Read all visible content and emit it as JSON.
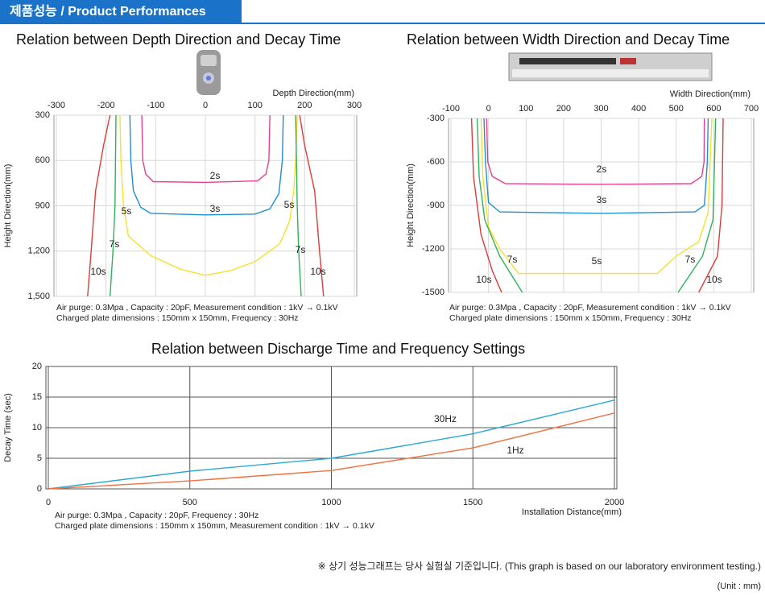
{
  "header": {
    "title": "제품성능 / Product Performances"
  },
  "chart_data": [
    {
      "type": "contour",
      "title": "Relation between Depth Direction and Decay Time",
      "x_label": "Depth Direction(mm)",
      "y_label": "Height Direction(mm)",
      "xlim": [
        -300,
        300
      ],
      "xticks": [
        -300,
        -200,
        -100,
        0,
        100,
        200,
        300
      ],
      "ylim": [
        300,
        1500
      ],
      "y_reversed": true,
      "yticks": [
        300,
        600,
        900,
        {
          "value": 1200,
          "label": "1,200"
        },
        {
          "value": 1500,
          "label": "1,500"
        }
      ],
      "grid": true,
      "series": [
        {
          "name": "2s",
          "color": "#e8408f",
          "x": [
            -128,
            -126,
            -120,
            -105,
            0,
            105,
            122,
            128,
            130
          ],
          "values": [
            300,
            600,
            690,
            740,
            745,
            735,
            690,
            600,
            300
          ]
        },
        {
          "name": "3s",
          "color": "#1f8fd0",
          "x": [
            -152,
            -150,
            -145,
            -130,
            -110,
            0,
            100,
            130,
            148,
            155,
            157
          ],
          "values": [
            300,
            600,
            800,
            910,
            950,
            960,
            955,
            920,
            820,
            600,
            300
          ]
        },
        {
          "name": "5s",
          "color": "#f5e030",
          "x": [
            -172,
            -170,
            -165,
            -155,
            -110,
            -50,
            0,
            50,
            100,
            150,
            170,
            178,
            182,
            185
          ],
          "values": [
            300,
            600,
            900,
            1100,
            1230,
            1320,
            1360,
            1330,
            1270,
            1150,
            1000,
            800,
            600,
            300
          ]
        },
        {
          "name": "7s",
          "color": "#2db35a",
          "x": [
            -180,
            -182,
            -186,
            -192,
            null,
            193,
            188,
            185,
            182
          ],
          "values": [
            300,
            900,
            1200,
            1500,
            null,
            1500,
            1200,
            900,
            300
          ]
        },
        {
          "name": "10s",
          "color": "#e03a3a",
          "x": [
            -192,
            -205,
            -221,
            -230,
            -237,
            null,
            238,
            230,
            220,
            200,
            190
          ],
          "values": [
            300,
            500,
            800,
            1200,
            1500,
            null,
            1500,
            1200,
            800,
            500,
            300
          ]
        }
      ],
      "notes": [
        "Air purge: 0.3Mpa , Capacity : 20pF,  Measurement condition : 1kV → 0.1kV",
        "Charged plate dimensions : 150mm x 150mm, Frequency : 30Hz"
      ]
    },
    {
      "type": "contour",
      "title": "Relation between Width Direction and Decay Time",
      "x_label": "Width Direction(mm)",
      "y_label": "Height Direction(mm)",
      "xlim": [
        -100,
        700
      ],
      "xticks": [
        -100,
        0,
        100,
        200,
        300,
        400,
        500,
        600,
        700
      ],
      "ylim": [
        -1500,
        -300
      ],
      "yticks": [
        -300,
        -600,
        -900,
        -1200,
        -1500
      ],
      "grid": true,
      "series": [
        {
          "name": "2s",
          "color": "#e8408f",
          "x": [
            -5,
            -2,
            10,
            45,
            300,
            540,
            568,
            574,
            575
          ],
          "values": [
            -300,
            -600,
            -700,
            -750,
            -755,
            -750,
            -700,
            -600,
            -300
          ]
        },
        {
          "name": "3s",
          "color": "#1f8fd0",
          "x": [
            -12,
            -8,
            0,
            30,
            300,
            550,
            575,
            583,
            585
          ],
          "values": [
            -300,
            -600,
            -880,
            -945,
            -955,
            -945,
            -900,
            -600,
            -300
          ]
        },
        {
          "name": "5s",
          "color": "#f5e030",
          "x": [
            -20,
            -15,
            0,
            30,
            80,
            450,
            500,
            560,
            585,
            595
          ],
          "values": [
            -300,
            -700,
            -1050,
            -1200,
            -1370,
            -1370,
            -1250,
            -1150,
            -950,
            -300
          ]
        },
        {
          "name": "7s",
          "color": "#2db35a",
          "x": [
            -30,
            -25,
            -10,
            30,
            90,
            null,
            505,
            570,
            598,
            605
          ],
          "values": [
            -300,
            -700,
            -1000,
            -1250,
            -1500,
            null,
            -1500,
            -1250,
            -1000,
            -300
          ]
        },
        {
          "name": "10s",
          "color": "#e03a3a",
          "x": [
            -45,
            -40,
            -20,
            10,
            35,
            null,
            560,
            610,
            622,
            625
          ],
          "values": [
            -300,
            -700,
            -1100,
            -1350,
            -1500,
            null,
            -1500,
            -1250,
            -900,
            -300
          ]
        }
      ],
      "notes": [
        "Air purge: 0.3Mpa , Capacity : 20pF,  Measurement condition : 1kV → 0.1kV",
        "Charged plate dimensions : 150mm x 150mm, Frequency : 30Hz"
      ]
    },
    {
      "type": "line",
      "title": "Relation between Discharge Time and Frequency Settings",
      "x_label": "Installation Distance(mm)",
      "y_label": "Decay Time (sec)",
      "x": [
        0,
        500,
        1000,
        1500,
        2000
      ],
      "xlim": [
        0,
        2000
      ],
      "xticks": [
        0,
        500,
        1000,
        1500,
        2000
      ],
      "ylim": [
        0,
        20
      ],
      "yticks": [
        0,
        5,
        10,
        15,
        20
      ],
      "grid": true,
      "series": [
        {
          "name": "30Hz",
          "color": "#2aa9d4",
          "values": [
            0,
            2.9,
            5,
            9,
            14.5
          ]
        },
        {
          "name": "1Hz",
          "color": "#f07040",
          "values": [
            0,
            1.3,
            3,
            6.7,
            12.4
          ]
        }
      ],
      "notes": [
        "Air purge: 0.3Mpa , Capacity : 20pF,  Frequency : 30Hz",
        "Charged plate dimensions : 150mm x 150mm, Measurement condition : 1kV → 0.1kV"
      ]
    }
  ],
  "footer": {
    "note": "※ 상기 성능그래프는 당사 실험실 기준입니다. (This graph is based on our laboratory environment testing.)",
    "unit": "(Unit : mm)"
  }
}
